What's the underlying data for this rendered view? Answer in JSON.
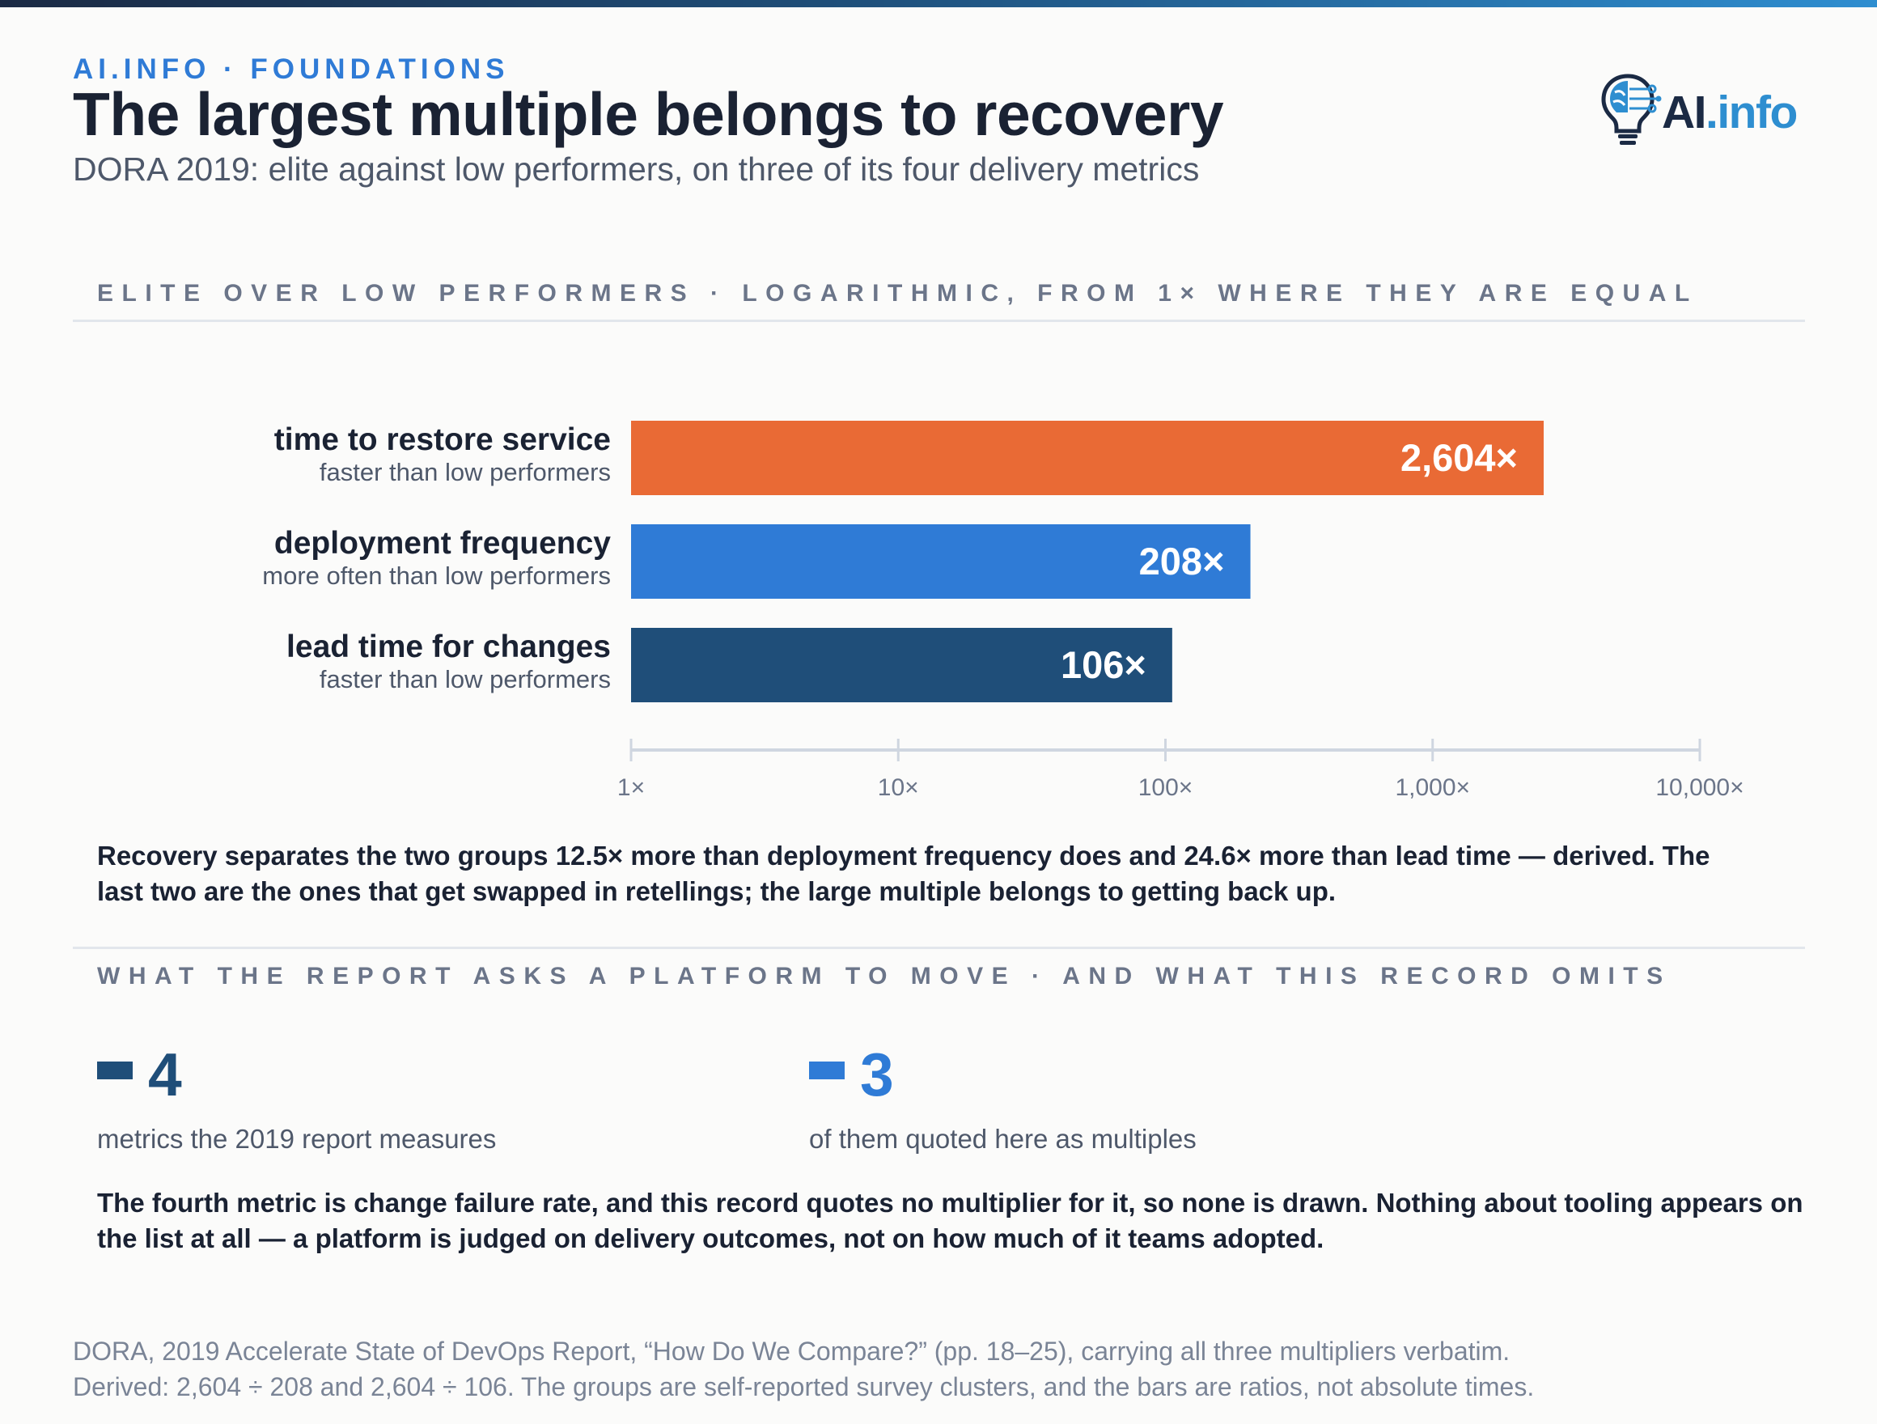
{
  "header": {
    "eyebrow": "AI.INFO · FOUNDATIONS",
    "title": "The largest multiple belongs to recovery",
    "subtitle": "DORA 2019: elite against low performers, on three of its four delivery metrics",
    "logo_ai": "AI",
    "logo_info": ".info"
  },
  "section1": {
    "label": "ELITE OVER LOW PERFORMERS · LOGARITHMIC, FROM 1× WHERE THEY ARE EQUAL"
  },
  "chart_data": {
    "type": "bar",
    "orientation": "horizontal",
    "scale": "log",
    "xlim": [
      1,
      10000
    ],
    "categories": [
      "time to restore service",
      "deployment frequency",
      "lead time for changes"
    ],
    "category_subtitles": [
      "faster than low performers",
      "more often than low performers",
      "faster than low performers"
    ],
    "values": [
      2604,
      208,
      106
    ],
    "value_labels": [
      "2,604×",
      "208×",
      "106×"
    ],
    "bar_colors": [
      "#e96a35",
      "#2f7bd6",
      "#1f4e79"
    ],
    "ticks": [
      1,
      10,
      100,
      1000,
      10000
    ],
    "tick_labels": [
      "1×",
      "10×",
      "100×",
      "1,000×",
      "10,000×"
    ],
    "grid": false,
    "legend": "none"
  },
  "finding": "Recovery separates the two groups 12.5× more than deployment frequency does and 24.6× more than lead time — derived. The last two are the ones that get swapped in retellings; the large multiple belongs to getting back up.",
  "section2": {
    "label": "WHAT THE REPORT ASKS A PLATFORM TO MOVE · AND WHAT THIS RECORD OMITS"
  },
  "stats": [
    {
      "value": "4",
      "label": "metrics the 2019 report measures",
      "color": "#1f4e79"
    },
    {
      "value": "3",
      "label": "of them quoted here as multiples",
      "color": "#2f7bd6"
    }
  ],
  "note": "The fourth metric is change failure rate, and this record quotes no multiplier for it, so none is drawn. Nothing about tooling appears on the list at all — a platform is judged on delivery outcomes, not on how much of it teams adopted.",
  "source": {
    "line1": "DORA, 2019 Accelerate State of DevOps Report, “How Do We Compare?” (pp. 18–25), carrying all three multipliers verbatim.",
    "line2": "Derived: 2,604 ÷ 208 and 2,604 ÷ 106. The groups are self-reported survey clusters, and the bars are ratios, not absolute times."
  }
}
